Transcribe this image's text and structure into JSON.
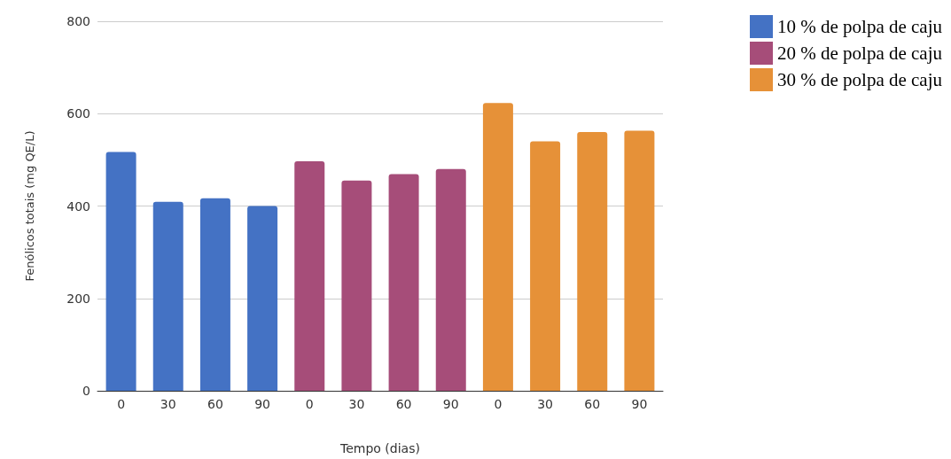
{
  "chart_data": {
    "type": "bar",
    "xlabel": "Tempo (dias)",
    "ylabel": "Fenólicos totais (mg QE/L)",
    "categories": [
      "0",
      "30",
      "60",
      "90",
      "0",
      "30",
      "60",
      "90",
      "0",
      "30",
      "60",
      "90"
    ],
    "series": [
      {
        "name": "10 % de polpa de caju",
        "color": "#4472c4",
        "values": [
          517,
          409,
          417,
          400,
          null,
          null,
          null,
          null,
          null,
          null,
          null,
          null
        ]
      },
      {
        "name": "20 % de polpa de caju",
        "color": "#a64d79",
        "values": [
          null,
          null,
          null,
          null,
          497,
          455,
          469,
          480,
          null,
          null,
          null,
          null
        ]
      },
      {
        "name": "30 % de polpa de caju",
        "color": "#e69138",
        "values": [
          null,
          null,
          null,
          null,
          null,
          null,
          null,
          null,
          623,
          540,
          560,
          563
        ]
      }
    ],
    "ylim": [
      0,
      800
    ],
    "yticks": [
      0,
      200,
      400,
      600,
      800
    ],
    "grid": "y",
    "legend": "top right"
  }
}
